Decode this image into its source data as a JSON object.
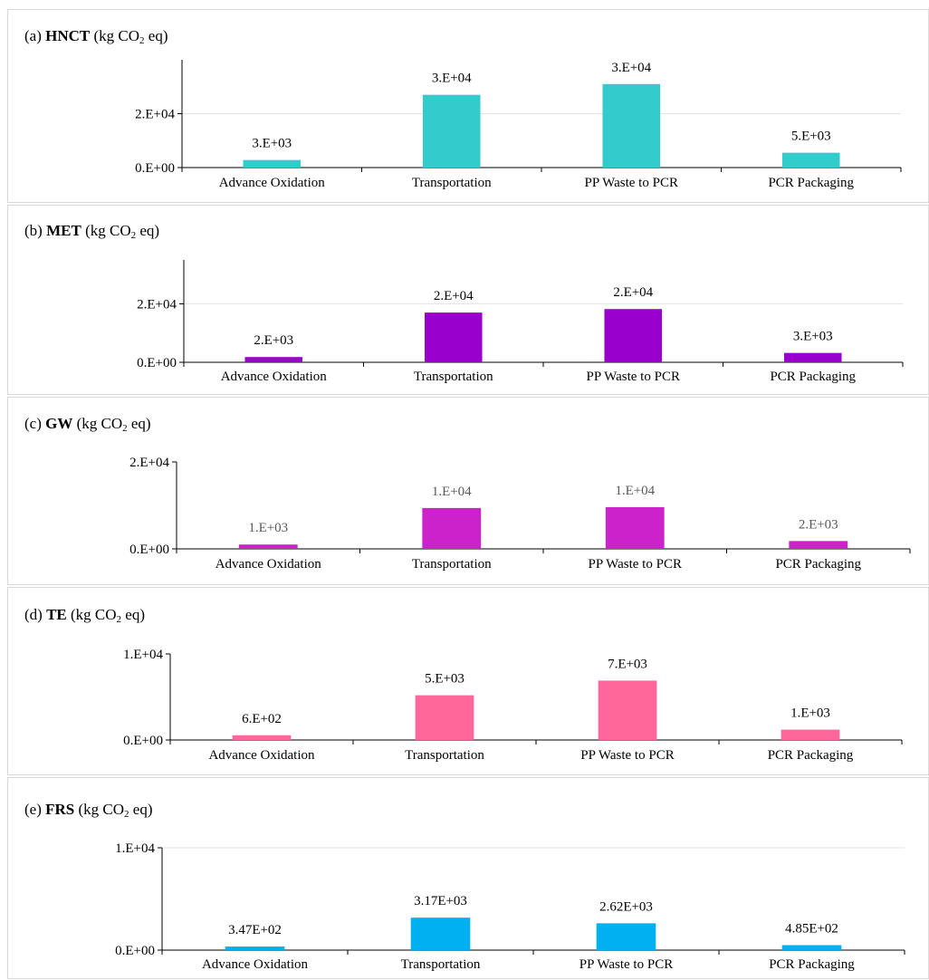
{
  "chart_data": [
    {
      "type": "bar",
      "panel_label": "(a)",
      "metric": "HNCT",
      "unit_pre": "(kg CO",
      "unit_sub": "2",
      "unit_post": " eq)",
      "categories": [
        "Advance Oxidation",
        "Transportation",
        "PP Waste to PCR",
        "PCR Packaging"
      ],
      "values": [
        2800,
        27000,
        31000,
        5500
      ],
      "data_labels": [
        "3.E+03",
        "3.E+04",
        "3.E+04",
        "5.E+03"
      ],
      "ylim": [
        0,
        40000
      ],
      "yticks": [
        0,
        20000
      ],
      "ytick_labels": [
        "0.E+00",
        "2.E+04"
      ],
      "color": "#33CCCC",
      "label_color": "#000000",
      "grid": true
    },
    {
      "type": "bar",
      "panel_label": "(b)",
      "metric": "MET",
      "unit_pre": "(kg CO",
      "unit_sub": "2",
      "unit_post": " eq)",
      "categories": [
        "Advance Oxidation",
        "Transportation",
        "PP Waste to PCR",
        "PCR Packaging"
      ],
      "values": [
        1800,
        17000,
        18200,
        3200
      ],
      "data_labels": [
        "2.E+03",
        "2.E+04",
        "2.E+04",
        "3.E+03"
      ],
      "ylim": [
        0,
        35000
      ],
      "yticks": [
        0,
        20000
      ],
      "ytick_labels": [
        "0.E+00",
        "2.E+04"
      ],
      "color": "#9900CC",
      "label_color": "#000000",
      "grid": true
    },
    {
      "type": "bar",
      "panel_label": "(c)",
      "metric": "GW",
      "unit_pre": "(kg CO",
      "unit_sub": "2",
      "unit_post": " eq)",
      "categories": [
        "Advance Oxidation",
        "Transportation",
        "PP Waste to PCR",
        "PCR Packaging"
      ],
      "values": [
        1000,
        9400,
        9600,
        1800
      ],
      "data_labels": [
        "1.E+03",
        "1.E+04",
        "1.E+04",
        "2.E+03"
      ],
      "ylim": [
        0,
        20000
      ],
      "yticks": [
        0,
        20000
      ],
      "ytick_labels": [
        "0.E+00",
        "2.E+04"
      ],
      "color": "#CC22CC",
      "label_color": "#595959",
      "grid": false
    },
    {
      "type": "bar",
      "panel_label": "(d)",
      "metric": "TE",
      "unit_pre": "(kg CO",
      "unit_sub": "2",
      "unit_post": " eq)",
      "categories": [
        "Advance Oxidation",
        "Transportation",
        "PP Waste to PCR",
        "PCR Packaging"
      ],
      "values": [
        550,
        5200,
        6900,
        1200
      ],
      "data_labels": [
        "6.E+02",
        "5.E+03",
        "7.E+03",
        "1.E+03"
      ],
      "ylim": [
        0,
        10000
      ],
      "yticks": [
        0,
        10000
      ],
      "ytick_labels": [
        "0.E+00",
        "1.E+04"
      ],
      "color": "#FF6699",
      "label_color": "#000000",
      "grid": false
    },
    {
      "type": "bar",
      "panel_label": "(e)",
      "metric": "FRS",
      "unit_pre": "(kg CO",
      "unit_sub": "2",
      "unit_post": " eq)",
      "categories": [
        "Advance Oxidation",
        "Transportation",
        "PP Waste to PCR",
        "PCR Packaging"
      ],
      "values": [
        347,
        3170,
        2620,
        485
      ],
      "data_labels": [
        "3.47E+02",
        "3.17E+03",
        "2.62E+03",
        "4.85E+02"
      ],
      "ylim": [
        0,
        10000
      ],
      "yticks": [
        0,
        10000
      ],
      "ytick_labels": [
        "0.E+00",
        "1.E+04"
      ],
      "color": "#00B0F0",
      "label_color": "#000000",
      "grid": true
    }
  ]
}
